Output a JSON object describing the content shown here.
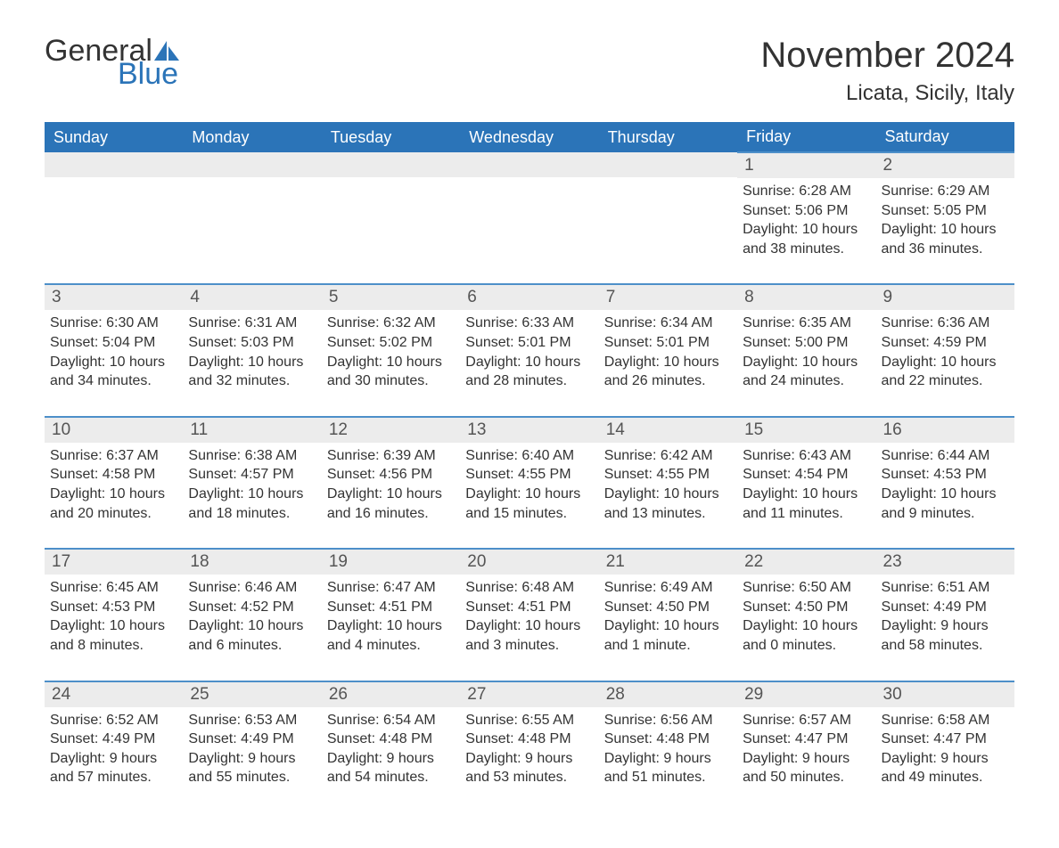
{
  "brand": {
    "part1": "General",
    "part2": "Blue",
    "logo_color": "#2b74b8"
  },
  "title": "November 2024",
  "location": "Licata, Sicily, Italy",
  "colors": {
    "header_bg": "#2b74b8",
    "header_text": "#ffffff",
    "row_border": "#4d8fc9",
    "daynum_bg": "#ececec",
    "text": "#333333",
    "page_bg": "#ffffff"
  },
  "layout": {
    "type": "calendar-table",
    "columns": 7,
    "rows": 5,
    "first_day_column_index": 5
  },
  "day_headers": [
    "Sunday",
    "Monday",
    "Tuesday",
    "Wednesday",
    "Thursday",
    "Friday",
    "Saturday"
  ],
  "labels": {
    "sunrise": "Sunrise: ",
    "sunset": "Sunset: ",
    "daylight": "Daylight: "
  },
  "days": [
    {
      "n": 1,
      "sunrise": "6:28 AM",
      "sunset": "5:06 PM",
      "daylight": "10 hours and 38 minutes."
    },
    {
      "n": 2,
      "sunrise": "6:29 AM",
      "sunset": "5:05 PM",
      "daylight": "10 hours and 36 minutes."
    },
    {
      "n": 3,
      "sunrise": "6:30 AM",
      "sunset": "5:04 PM",
      "daylight": "10 hours and 34 minutes."
    },
    {
      "n": 4,
      "sunrise": "6:31 AM",
      "sunset": "5:03 PM",
      "daylight": "10 hours and 32 minutes."
    },
    {
      "n": 5,
      "sunrise": "6:32 AM",
      "sunset": "5:02 PM",
      "daylight": "10 hours and 30 minutes."
    },
    {
      "n": 6,
      "sunrise": "6:33 AM",
      "sunset": "5:01 PM",
      "daylight": "10 hours and 28 minutes."
    },
    {
      "n": 7,
      "sunrise": "6:34 AM",
      "sunset": "5:01 PM",
      "daylight": "10 hours and 26 minutes."
    },
    {
      "n": 8,
      "sunrise": "6:35 AM",
      "sunset": "5:00 PM",
      "daylight": "10 hours and 24 minutes."
    },
    {
      "n": 9,
      "sunrise": "6:36 AM",
      "sunset": "4:59 PM",
      "daylight": "10 hours and 22 minutes."
    },
    {
      "n": 10,
      "sunrise": "6:37 AM",
      "sunset": "4:58 PM",
      "daylight": "10 hours and 20 minutes."
    },
    {
      "n": 11,
      "sunrise": "6:38 AM",
      "sunset": "4:57 PM",
      "daylight": "10 hours and 18 minutes."
    },
    {
      "n": 12,
      "sunrise": "6:39 AM",
      "sunset": "4:56 PM",
      "daylight": "10 hours and 16 minutes."
    },
    {
      "n": 13,
      "sunrise": "6:40 AM",
      "sunset": "4:55 PM",
      "daylight": "10 hours and 15 minutes."
    },
    {
      "n": 14,
      "sunrise": "6:42 AM",
      "sunset": "4:55 PM",
      "daylight": "10 hours and 13 minutes."
    },
    {
      "n": 15,
      "sunrise": "6:43 AM",
      "sunset": "4:54 PM",
      "daylight": "10 hours and 11 minutes."
    },
    {
      "n": 16,
      "sunrise": "6:44 AM",
      "sunset": "4:53 PM",
      "daylight": "10 hours and 9 minutes."
    },
    {
      "n": 17,
      "sunrise": "6:45 AM",
      "sunset": "4:53 PM",
      "daylight": "10 hours and 8 minutes."
    },
    {
      "n": 18,
      "sunrise": "6:46 AM",
      "sunset": "4:52 PM",
      "daylight": "10 hours and 6 minutes."
    },
    {
      "n": 19,
      "sunrise": "6:47 AM",
      "sunset": "4:51 PM",
      "daylight": "10 hours and 4 minutes."
    },
    {
      "n": 20,
      "sunrise": "6:48 AM",
      "sunset": "4:51 PM",
      "daylight": "10 hours and 3 minutes."
    },
    {
      "n": 21,
      "sunrise": "6:49 AM",
      "sunset": "4:50 PM",
      "daylight": "10 hours and 1 minute."
    },
    {
      "n": 22,
      "sunrise": "6:50 AM",
      "sunset": "4:50 PM",
      "daylight": "10 hours and 0 minutes."
    },
    {
      "n": 23,
      "sunrise": "6:51 AM",
      "sunset": "4:49 PM",
      "daylight": "9 hours and 58 minutes."
    },
    {
      "n": 24,
      "sunrise": "6:52 AM",
      "sunset": "4:49 PM",
      "daylight": "9 hours and 57 minutes."
    },
    {
      "n": 25,
      "sunrise": "6:53 AM",
      "sunset": "4:49 PM",
      "daylight": "9 hours and 55 minutes."
    },
    {
      "n": 26,
      "sunrise": "6:54 AM",
      "sunset": "4:48 PM",
      "daylight": "9 hours and 54 minutes."
    },
    {
      "n": 27,
      "sunrise": "6:55 AM",
      "sunset": "4:48 PM",
      "daylight": "9 hours and 53 minutes."
    },
    {
      "n": 28,
      "sunrise": "6:56 AM",
      "sunset": "4:48 PM",
      "daylight": "9 hours and 51 minutes."
    },
    {
      "n": 29,
      "sunrise": "6:57 AM",
      "sunset": "4:47 PM",
      "daylight": "9 hours and 50 minutes."
    },
    {
      "n": 30,
      "sunrise": "6:58 AM",
      "sunset": "4:47 PM",
      "daylight": "9 hours and 49 minutes."
    }
  ]
}
